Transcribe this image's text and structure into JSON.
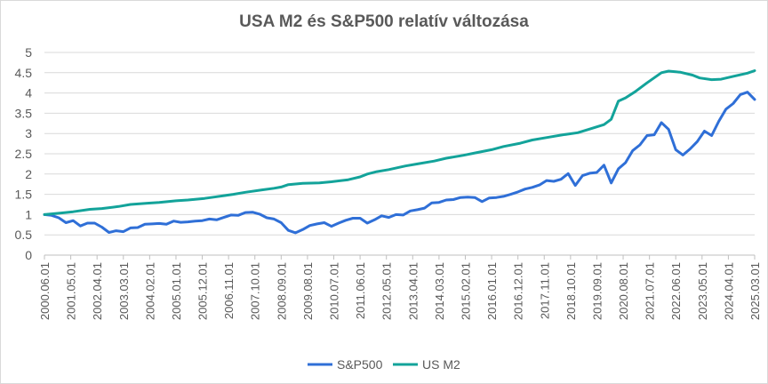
{
  "chart_data": {
    "type": "line",
    "title": "USA  M2 és S&P500 relatív változása",
    "xlabel": "",
    "ylabel": "",
    "ylim": [
      0,
      5
    ],
    "y_ticks": [
      "0",
      "0.5",
      "1",
      "1.5",
      "2",
      "2.5",
      "3",
      "3.5",
      "4",
      "4.5",
      "5"
    ],
    "x_tick_labels": [
      "2000.06.01",
      "2001.05.01",
      "2002.04.01",
      "2003.03.01",
      "2004.02.01",
      "2005.01.01",
      "2005.12.01",
      "2006.11.01",
      "2007.10.01",
      "2008.09.01",
      "2009.08.01",
      "2010.07.01",
      "2011.06.01",
      "2012.05.01",
      "2013.04.01",
      "2014.03.01",
      "2015.02.01",
      "2016.01.01",
      "2016.12.01",
      "2017.11.01",
      "2018.10.01",
      "2019.09.01",
      "2020.08.01",
      "2021.07.01",
      "2022.06.01",
      "2023.05.01",
      "2024.04.01",
      "2025.03.01"
    ],
    "legend_position": "bottom",
    "grid": "horizontal",
    "series": [
      {
        "name": "S&P500",
        "color": "#2f6fd7",
        "points": [
          [
            "2000.06.01",
            1.0
          ],
          [
            "2000.09.01",
            0.98
          ],
          [
            "2000.12.01",
            0.92
          ],
          [
            "2001.03.01",
            0.8
          ],
          [
            "2001.06.01",
            0.85
          ],
          [
            "2001.09.01",
            0.72
          ],
          [
            "2001.12.01",
            0.79
          ],
          [
            "2002.03.01",
            0.79
          ],
          [
            "2002.06.01",
            0.69
          ],
          [
            "2002.09.01",
            0.56
          ],
          [
            "2002.12.01",
            0.6
          ],
          [
            "2003.03.01",
            0.58
          ],
          [
            "2003.06.01",
            0.67
          ],
          [
            "2003.09.01",
            0.68
          ],
          [
            "2003.12.01",
            0.76
          ],
          [
            "2004.03.01",
            0.77
          ],
          [
            "2004.06.01",
            0.78
          ],
          [
            "2004.09.01",
            0.76
          ],
          [
            "2004.12.01",
            0.84
          ],
          [
            "2005.03.01",
            0.81
          ],
          [
            "2005.06.01",
            0.82
          ],
          [
            "2005.09.01",
            0.84
          ],
          [
            "2005.12.01",
            0.85
          ],
          [
            "2006.03.01",
            0.89
          ],
          [
            "2006.06.01",
            0.87
          ],
          [
            "2006.09.01",
            0.93
          ],
          [
            "2006.12.01",
            0.99
          ],
          [
            "2007.03.01",
            0.98
          ],
          [
            "2007.06.01",
            1.05
          ],
          [
            "2007.09.01",
            1.06
          ],
          [
            "2007.12.01",
            1.01
          ],
          [
            "2008.03.01",
            0.92
          ],
          [
            "2008.06.01",
            0.89
          ],
          [
            "2008.09.01",
            0.8
          ],
          [
            "2008.12.01",
            0.61
          ],
          [
            "2009.03.01",
            0.55
          ],
          [
            "2009.06.01",
            0.63
          ],
          [
            "2009.09.01",
            0.73
          ],
          [
            "2009.12.01",
            0.77
          ],
          [
            "2010.03.01",
            0.8
          ],
          [
            "2010.06.01",
            0.71
          ],
          [
            "2010.09.01",
            0.79
          ],
          [
            "2010.12.01",
            0.86
          ],
          [
            "2011.03.01",
            0.91
          ],
          [
            "2011.06.01",
            0.91
          ],
          [
            "2011.09.01",
            0.79
          ],
          [
            "2011.12.01",
            0.87
          ],
          [
            "2012.03.01",
            0.97
          ],
          [
            "2012.06.01",
            0.93
          ],
          [
            "2012.09.01",
            1.0
          ],
          [
            "2012.12.01",
            0.99
          ],
          [
            "2013.03.01",
            1.09
          ],
          [
            "2013.06.01",
            1.12
          ],
          [
            "2013.09.01",
            1.16
          ],
          [
            "2013.12.01",
            1.29
          ],
          [
            "2014.03.01",
            1.3
          ],
          [
            "2014.06.01",
            1.36
          ],
          [
            "2014.09.01",
            1.37
          ],
          [
            "2014.12.01",
            1.42
          ],
          [
            "2015.03.01",
            1.43
          ],
          [
            "2015.06.01",
            1.42
          ],
          [
            "2015.09.01",
            1.32
          ],
          [
            "2015.12.01",
            1.41
          ],
          [
            "2016.03.01",
            1.42
          ],
          [
            "2016.06.01",
            1.45
          ],
          [
            "2016.09.01",
            1.5
          ],
          [
            "2016.12.01",
            1.56
          ],
          [
            "2017.03.01",
            1.63
          ],
          [
            "2017.06.01",
            1.67
          ],
          [
            "2017.09.01",
            1.73
          ],
          [
            "2017.12.01",
            1.84
          ],
          [
            "2018.03.01",
            1.82
          ],
          [
            "2018.06.01",
            1.87
          ],
          [
            "2018.09.01",
            2.01
          ],
          [
            "2018.12.01",
            1.72
          ],
          [
            "2019.03.01",
            1.96
          ],
          [
            "2019.06.01",
            2.02
          ],
          [
            "2019.09.01",
            2.04
          ],
          [
            "2019.12.01",
            2.22
          ],
          [
            "2020.03.01",
            1.78
          ],
          [
            "2020.06.01",
            2.13
          ],
          [
            "2020.09.01",
            2.28
          ],
          [
            "2020.12.01",
            2.58
          ],
          [
            "2021.03.01",
            2.72
          ],
          [
            "2021.06.01",
            2.95
          ],
          [
            "2021.09.01",
            2.97
          ],
          [
            "2021.12.01",
            3.27
          ],
          [
            "2022.03.01",
            3.1
          ],
          [
            "2022.06.01",
            2.6
          ],
          [
            "2022.09.01",
            2.47
          ],
          [
            "2022.12.01",
            2.62
          ],
          [
            "2023.03.01",
            2.8
          ],
          [
            "2023.06.01",
            3.06
          ],
          [
            "2023.09.01",
            2.95
          ],
          [
            "2023.12.01",
            3.3
          ],
          [
            "2024.03.01",
            3.6
          ],
          [
            "2024.06.01",
            3.74
          ],
          [
            "2024.09.01",
            3.96
          ],
          [
            "2024.12.01",
            4.02
          ],
          [
            "2025.03.01",
            3.84
          ]
        ]
      },
      {
        "name": "US M2",
        "color": "#13a39a",
        "points": [
          [
            "2000.06.01",
            1.0
          ],
          [
            "2001.01.01",
            1.04
          ],
          [
            "2001.06.01",
            1.07
          ],
          [
            "2002.01.01",
            1.13
          ],
          [
            "2002.06.01",
            1.15
          ],
          [
            "2003.01.01",
            1.2
          ],
          [
            "2003.06.01",
            1.25
          ],
          [
            "2004.01.01",
            1.28
          ],
          [
            "2004.06.01",
            1.3
          ],
          [
            "2005.01.01",
            1.34
          ],
          [
            "2005.06.01",
            1.36
          ],
          [
            "2006.01.01",
            1.4
          ],
          [
            "2006.06.01",
            1.44
          ],
          [
            "2007.01.01",
            1.5
          ],
          [
            "2007.06.01",
            1.55
          ],
          [
            "2008.01.01",
            1.61
          ],
          [
            "2008.06.01",
            1.65
          ],
          [
            "2008.09.01",
            1.68
          ],
          [
            "2008.12.01",
            1.74
          ],
          [
            "2009.06.01",
            1.77
          ],
          [
            "2010.01.01",
            1.78
          ],
          [
            "2010.06.01",
            1.81
          ],
          [
            "2011.01.01",
            1.86
          ],
          [
            "2011.06.01",
            1.93
          ],
          [
            "2011.09.01",
            2.0
          ],
          [
            "2012.01.01",
            2.06
          ],
          [
            "2012.06.01",
            2.11
          ],
          [
            "2013.01.01",
            2.2
          ],
          [
            "2013.06.01",
            2.25
          ],
          [
            "2014.01.01",
            2.32
          ],
          [
            "2014.06.01",
            2.39
          ],
          [
            "2015.01.01",
            2.46
          ],
          [
            "2015.06.01",
            2.52
          ],
          [
            "2016.01.01",
            2.6
          ],
          [
            "2016.06.01",
            2.68
          ],
          [
            "2017.01.01",
            2.76
          ],
          [
            "2017.06.01",
            2.84
          ],
          [
            "2018.01.01",
            2.91
          ],
          [
            "2018.06.01",
            2.96
          ],
          [
            "2019.01.01",
            3.02
          ],
          [
            "2019.06.01",
            3.11
          ],
          [
            "2019.12.01",
            3.22
          ],
          [
            "2020.03.01",
            3.35
          ],
          [
            "2020.06.01",
            3.8
          ],
          [
            "2020.09.01",
            3.88
          ],
          [
            "2021.01.01",
            4.03
          ],
          [
            "2021.06.01",
            4.25
          ],
          [
            "2021.12.01",
            4.5
          ],
          [
            "2022.03.01",
            4.54
          ],
          [
            "2022.08.01",
            4.51
          ],
          [
            "2023.01.01",
            4.44
          ],
          [
            "2023.04.01",
            4.37
          ],
          [
            "2023.09.01",
            4.33
          ],
          [
            "2024.01.01",
            4.34
          ],
          [
            "2024.06.01",
            4.41
          ],
          [
            "2024.12.01",
            4.49
          ],
          [
            "2025.03.01",
            4.55
          ]
        ]
      }
    ]
  }
}
